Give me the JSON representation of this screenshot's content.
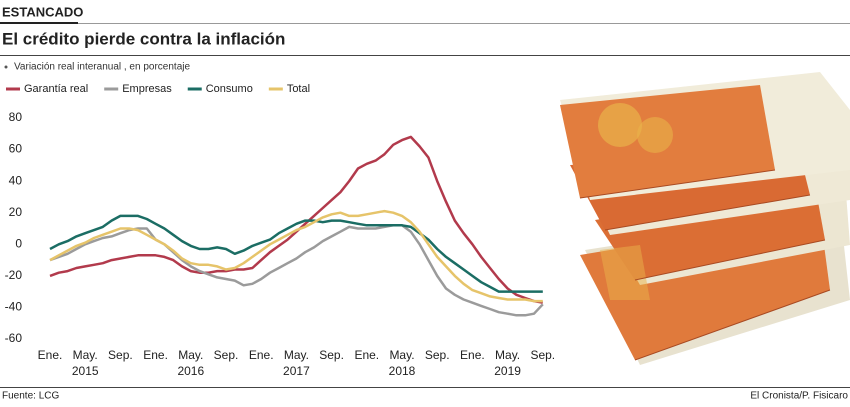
{
  "header": {
    "kicker": "ESTANCADO",
    "title": "El crédito pierde contra la inflación"
  },
  "chart_data": {
    "type": "line",
    "subtitle": "Variación real interanual , en porcentaje",
    "categories": [
      "Ene.",
      null,
      null,
      null,
      "May.",
      null,
      null,
      null,
      "Sep.",
      null,
      null,
      null,
      "Ene.",
      null,
      null,
      null,
      "May.",
      null,
      null,
      null,
      "Sep.",
      null,
      null,
      null,
      "Ene.",
      null,
      null,
      null,
      "May.",
      null,
      null,
      null,
      "Sep.",
      null,
      null,
      null,
      "Ene.",
      null,
      null,
      null,
      "May.",
      null,
      null,
      null,
      "Sep.",
      null,
      null,
      null,
      "Ene.",
      null,
      null,
      null,
      "May.",
      null,
      null,
      null,
      "Sep."
    ],
    "years": [
      "2015",
      "2016",
      "2017",
      "2018",
      "2019"
    ],
    "series": [
      {
        "name": "Garantía real",
        "color": "#b23a4c",
        "values": [
          -20,
          -18,
          -17,
          -15,
          -14,
          -13,
          -12,
          -10,
          -9,
          -8,
          -7,
          -7,
          -7,
          -8,
          -10,
          -14,
          -17,
          -18,
          -18,
          -17,
          -17,
          -16,
          -16,
          -15,
          -10,
          -5,
          -1,
          3,
          8,
          13,
          18,
          23,
          28,
          33,
          40,
          48,
          51,
          53,
          57,
          63,
          66,
          68,
          62,
          55,
          40,
          27,
          15,
          7,
          0,
          -8,
          -15,
          -22,
          -28,
          -32,
          -34,
          -36,
          -37
        ]
      },
      {
        "name": "Empresas",
        "color": "#9b9b9b",
        "values": [
          -10,
          -8,
          -6,
          -3,
          0,
          2,
          4,
          5,
          7,
          9,
          10,
          10,
          3,
          0,
          -5,
          -10,
          -14,
          -17,
          -19,
          -21,
          -22,
          -23,
          -26,
          -25,
          -22,
          -18,
          -15,
          -12,
          -9,
          -5,
          -2,
          2,
          5,
          8,
          11,
          10,
          10,
          10,
          11,
          12,
          12,
          8,
          0,
          -10,
          -20,
          -28,
          -32,
          -35,
          -37,
          -39,
          -41,
          -43,
          -44,
          -45,
          -45,
          -44,
          -38
        ]
      },
      {
        "name": "Consumo",
        "color": "#1b6d64",
        "values": [
          -3,
          0,
          2,
          5,
          7,
          9,
          11,
          15,
          18,
          18,
          18,
          16,
          13,
          10,
          6,
          2,
          -1,
          -3,
          -3,
          -2,
          -3,
          -6,
          -4,
          -1,
          1,
          3,
          7,
          10,
          13,
          15,
          15,
          14,
          15,
          15,
          14,
          13,
          12,
          12,
          12,
          12,
          12,
          11,
          7,
          3,
          -3,
          -8,
          -12,
          -16,
          -20,
          -24,
          -27,
          -30,
          -30,
          -30,
          -30,
          -30,
          -30
        ]
      },
      {
        "name": "Total",
        "color": "#e6c46a",
        "values": [
          -10,
          -7,
          -4,
          -1,
          1,
          4,
          6,
          8,
          10,
          10,
          9,
          6,
          3,
          0,
          -4,
          -9,
          -12,
          -13,
          -13,
          -14,
          -16,
          -15,
          -12,
          -8,
          -4,
          0,
          3,
          6,
          9,
          11,
          14,
          17,
          19,
          20,
          18,
          18,
          19,
          20,
          21,
          20,
          18,
          14,
          8,
          0,
          -8,
          -14,
          -20,
          -25,
          -29,
          -31,
          -33,
          -34,
          -35,
          -35,
          -35,
          -36,
          -36
        ]
      }
    ],
    "ylim": [
      -60,
      80
    ],
    "yticks": [
      80,
      60,
      40,
      20,
      0,
      -20,
      -40,
      -60
    ],
    "grid": false
  },
  "footer": {
    "source": "Fuente: LCG",
    "credit": "El Cronista/P. Fisicaro"
  }
}
